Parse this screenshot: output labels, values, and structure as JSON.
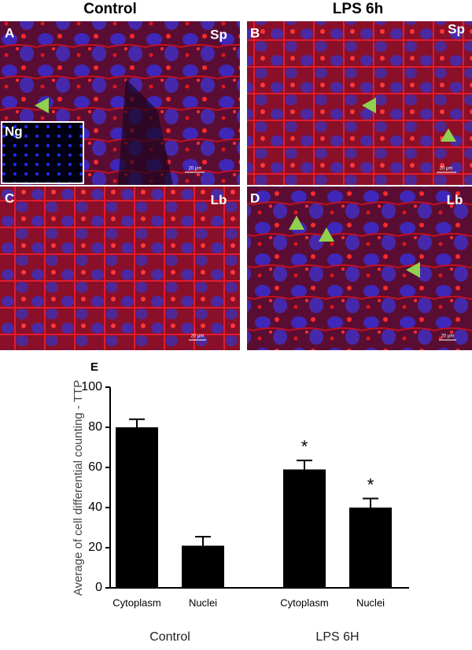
{
  "columns": [
    "Control",
    "LPS 6h"
  ],
  "panels": [
    {
      "letter": "A",
      "tag": "Sp",
      "scale": "20 μm",
      "inset": "Ng"
    },
    {
      "letter": "B",
      "tag": "Sp",
      "scale": "20 μm"
    },
    {
      "letter": "C",
      "tag": "Lb",
      "scale": "20 μm"
    },
    {
      "letter": "D",
      "tag": "Lb",
      "scale": "20 μm"
    }
  ],
  "chart_data": {
    "type": "bar",
    "letter": "E",
    "ylabel": "Average of cell differential counting - TTP",
    "categories": [
      "Cytoplasm",
      "Nuclei",
      "Cytoplasm",
      "Nuclei"
    ],
    "values": [
      80,
      21,
      59,
      40
    ],
    "errors": [
      4,
      4.5,
      4.5,
      4.5
    ],
    "markers": [
      null,
      null,
      "*",
      "*"
    ],
    "group_labels": [
      "Control",
      "LPS 6H"
    ],
    "color": "#000000",
    "ylim": [
      0,
      100
    ],
    "yticks": [
      0,
      20,
      40,
      60,
      80,
      100
    ]
  }
}
